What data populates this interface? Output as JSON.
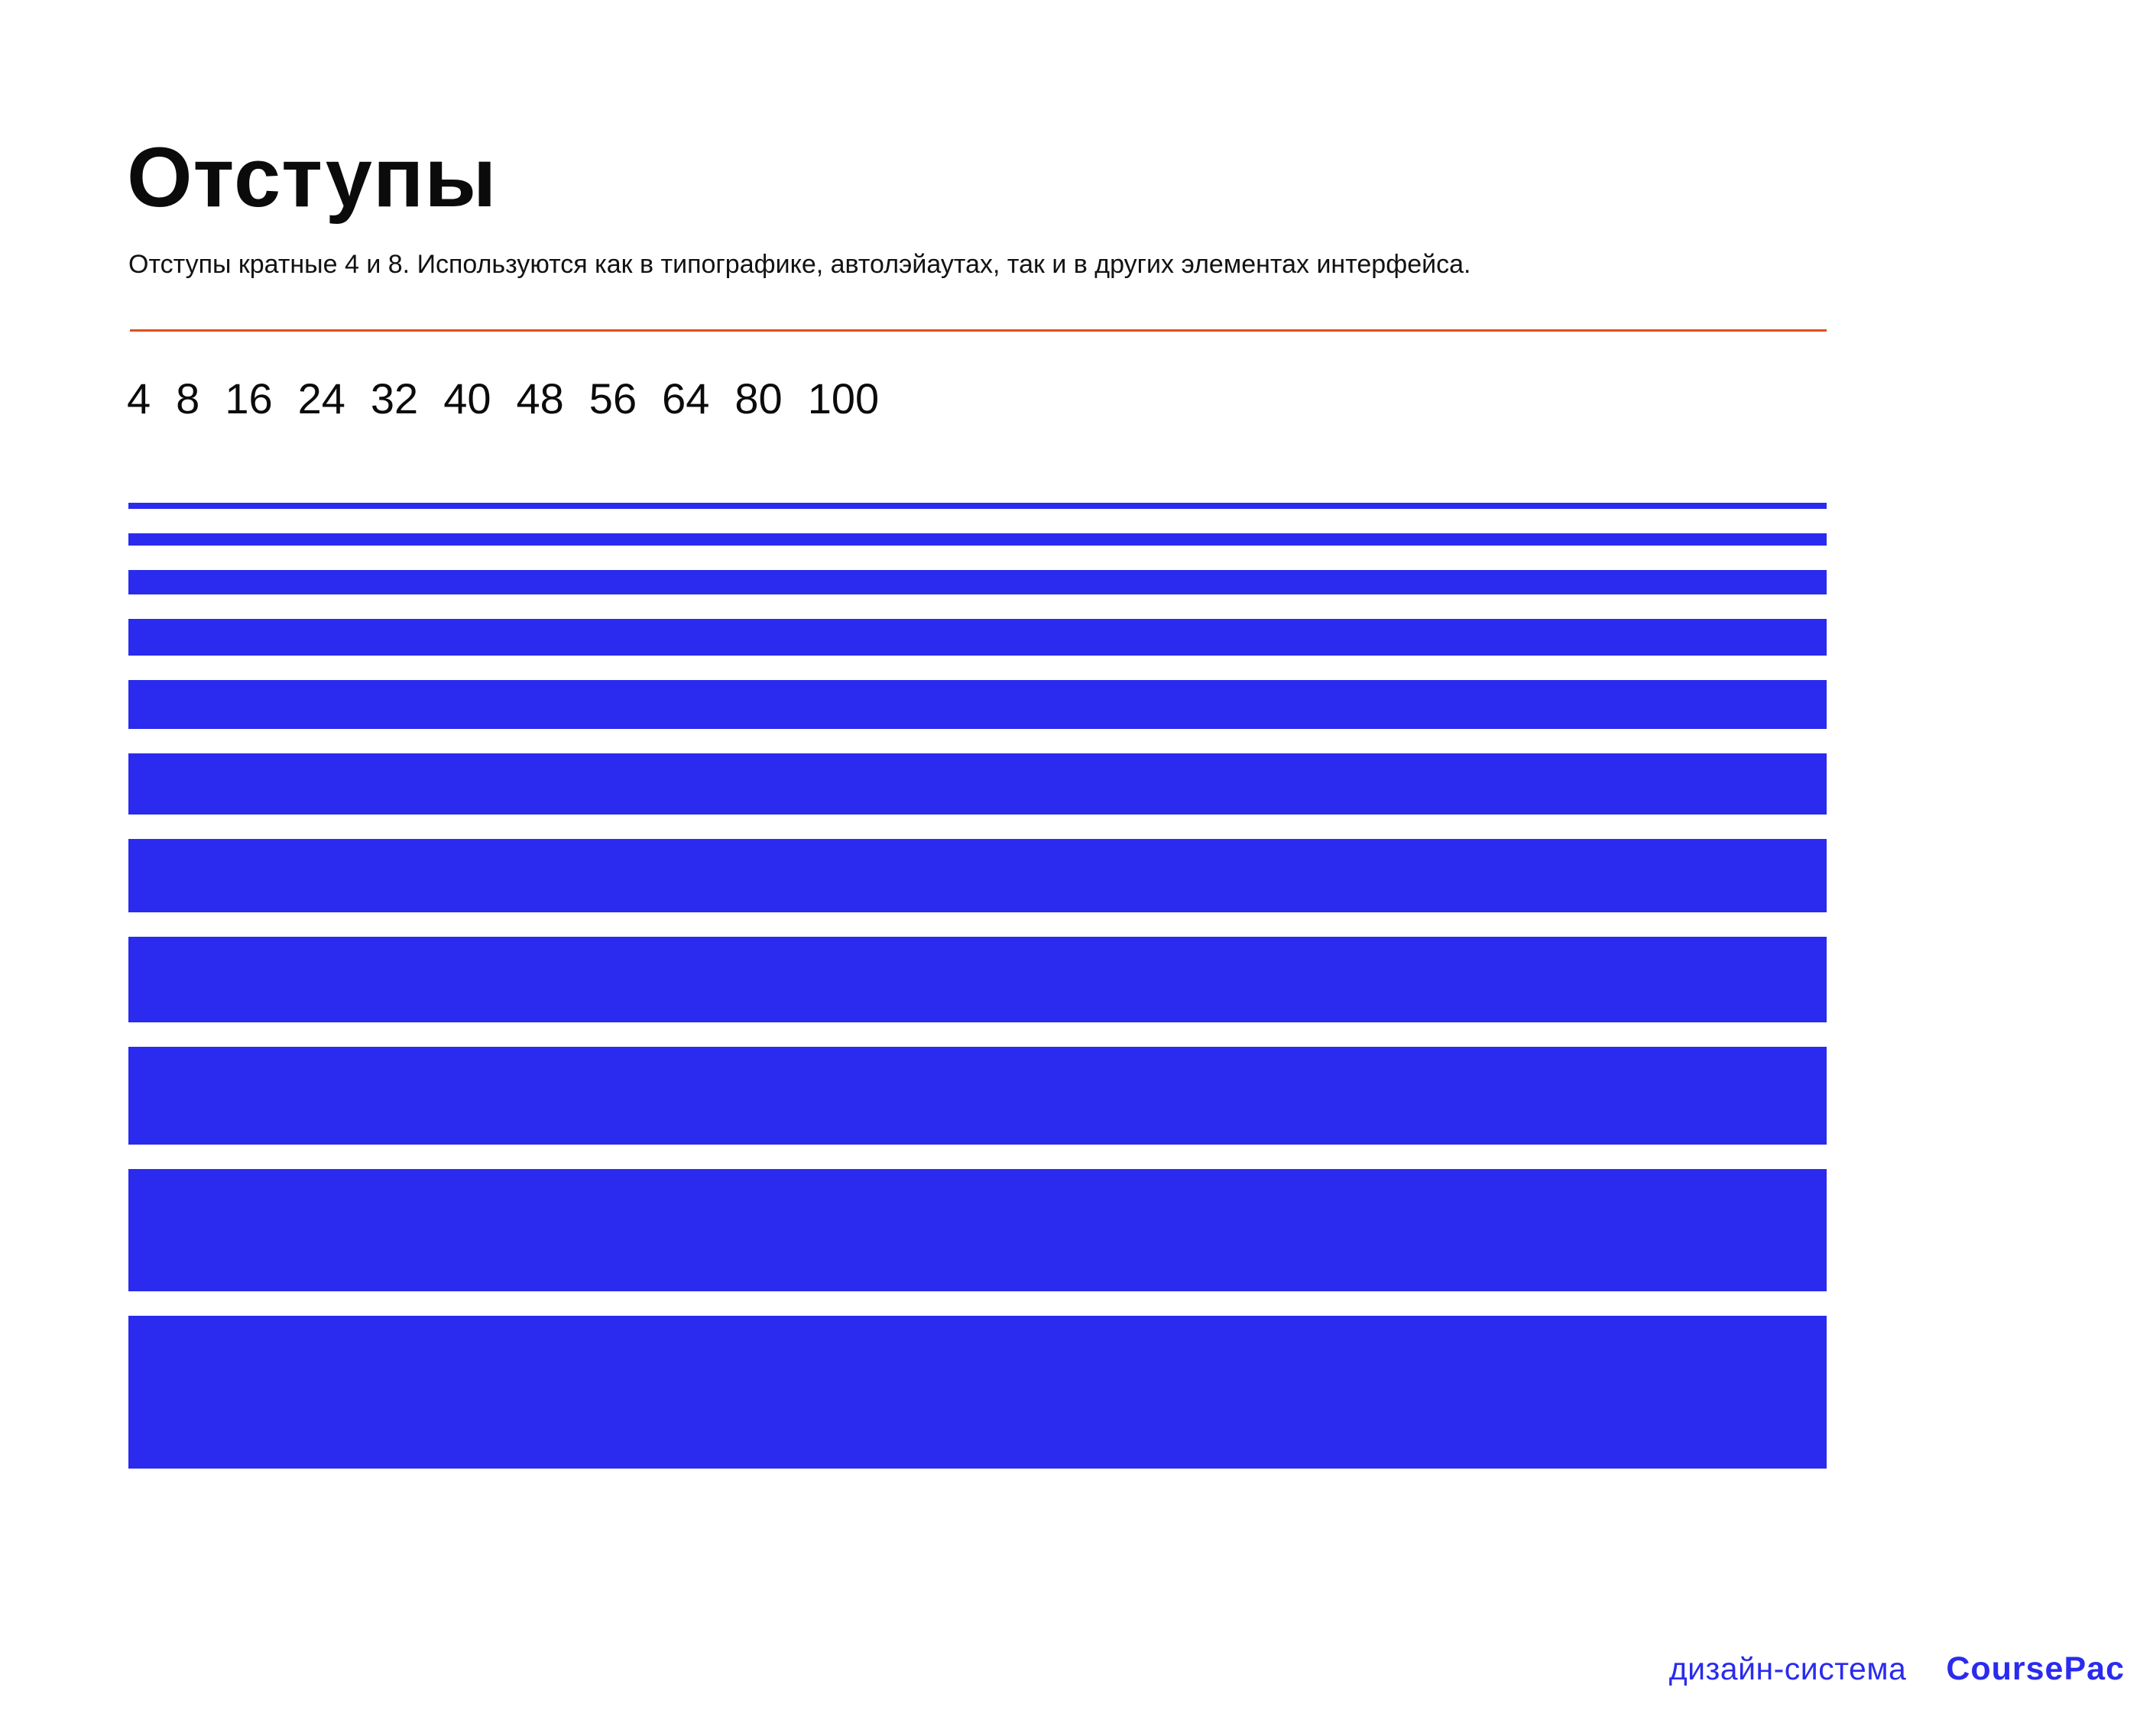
{
  "page": {
    "title": "Отступы",
    "subtitle": "Отступы кратные 4 и 8. Используются как в типографике, автолэйаутах, так и в других элементах интерфейса.",
    "divider_color": "#DF501C",
    "bar_color": "#2A2BEE",
    "text_color": "#0B0B0B",
    "background_color": "#FFFFFF"
  },
  "spacing_scale": {
    "labels": [
      "4",
      "8",
      "16",
      "24",
      "32",
      "40",
      "48",
      "56",
      "64",
      "80",
      "100"
    ],
    "values": [
      4,
      8,
      16,
      24,
      32,
      40,
      48,
      56,
      64,
      80,
      100
    ]
  },
  "footer": {
    "label": "дизайн-система",
    "brand": "CoursePac"
  }
}
